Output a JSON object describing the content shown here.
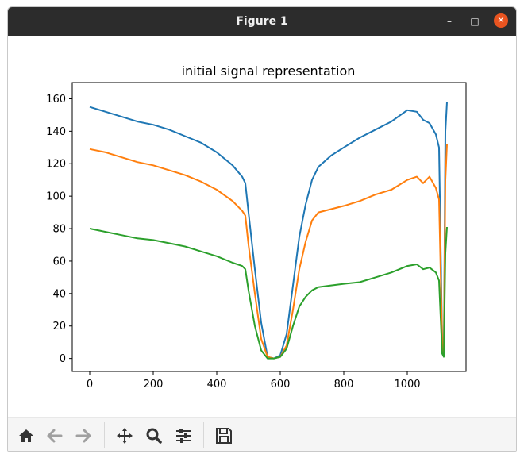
{
  "window": {
    "title": "Figure 1",
    "controls": {
      "minimize": "–",
      "maximize": "□",
      "close": "✕"
    }
  },
  "toolbar": {
    "buttons": [
      {
        "name": "home-icon",
        "enabled": true
      },
      {
        "name": "back-arrow-icon",
        "enabled": false
      },
      {
        "name": "forward-arrow-icon",
        "enabled": false
      },
      {
        "name": "pan-icon",
        "enabled": true
      },
      {
        "name": "zoom-icon",
        "enabled": true
      },
      {
        "name": "configure-subplots-icon",
        "enabled": true
      },
      {
        "name": "save-icon",
        "enabled": true
      }
    ]
  },
  "chart_data": {
    "type": "line",
    "title": "initial signal representation",
    "xlabel": "",
    "ylabel": "",
    "xlim": [
      -55,
      1185
    ],
    "ylim": [
      -8,
      170
    ],
    "xticks": [
      0,
      200,
      400,
      600,
      800,
      1000
    ],
    "yticks": [
      0,
      20,
      40,
      60,
      80,
      100,
      120,
      140,
      160
    ],
    "grid": false,
    "colors": [
      "#1f77b4",
      "#ff7f0e",
      "#2ca02c"
    ],
    "series": [
      {
        "x": [
          0,
          50,
          100,
          150,
          200,
          250,
          300,
          350,
          400,
          450,
          480,
          490,
          500,
          520,
          540,
          560,
          580,
          600,
          620,
          640,
          660,
          680,
          700,
          720,
          760,
          800,
          850,
          900,
          950,
          1000,
          1030,
          1050,
          1070,
          1090,
          1100,
          1110,
          1115,
          1120,
          1125
        ],
        "y": [
          155,
          152,
          149,
          146,
          144,
          141,
          137,
          133,
          127,
          119,
          112,
          108,
          90,
          55,
          22,
          1,
          0,
          2,
          15,
          45,
          75,
          95,
          110,
          118,
          125,
          130,
          136,
          141,
          146,
          153,
          152,
          147,
          145,
          138,
          130,
          10,
          2,
          140,
          158
        ]
      },
      {
        "x": [
          0,
          50,
          100,
          150,
          200,
          250,
          300,
          350,
          400,
          450,
          480,
          490,
          500,
          520,
          540,
          560,
          580,
          600,
          620,
          640,
          660,
          680,
          700,
          720,
          760,
          800,
          850,
          900,
          950,
          1000,
          1030,
          1050,
          1070,
          1090,
          1100,
          1110,
          1115,
          1120,
          1125
        ],
        "y": [
          129,
          127,
          124,
          121,
          119,
          116,
          113,
          109,
          104,
          97,
          91,
          88,
          70,
          40,
          12,
          1,
          0,
          1,
          8,
          30,
          55,
          72,
          85,
          90,
          92,
          94,
          97,
          101,
          104,
          110,
          112,
          108,
          112,
          105,
          98,
          10,
          3,
          110,
          132
        ]
      },
      {
        "x": [
          0,
          50,
          100,
          150,
          200,
          250,
          300,
          350,
          400,
          450,
          480,
          490,
          500,
          520,
          540,
          560,
          580,
          600,
          620,
          640,
          660,
          680,
          700,
          720,
          760,
          800,
          850,
          900,
          950,
          1000,
          1030,
          1050,
          1070,
          1090,
          1100,
          1110,
          1115,
          1120,
          1125
        ],
        "y": [
          80,
          78,
          76,
          74,
          73,
          71,
          69,
          66,
          63,
          59,
          57,
          55,
          42,
          20,
          5,
          0,
          0,
          1,
          6,
          20,
          32,
          38,
          42,
          44,
          45,
          46,
          47,
          50,
          53,
          57,
          58,
          55,
          56,
          53,
          48,
          3,
          1,
          65,
          81
        ]
      }
    ]
  }
}
